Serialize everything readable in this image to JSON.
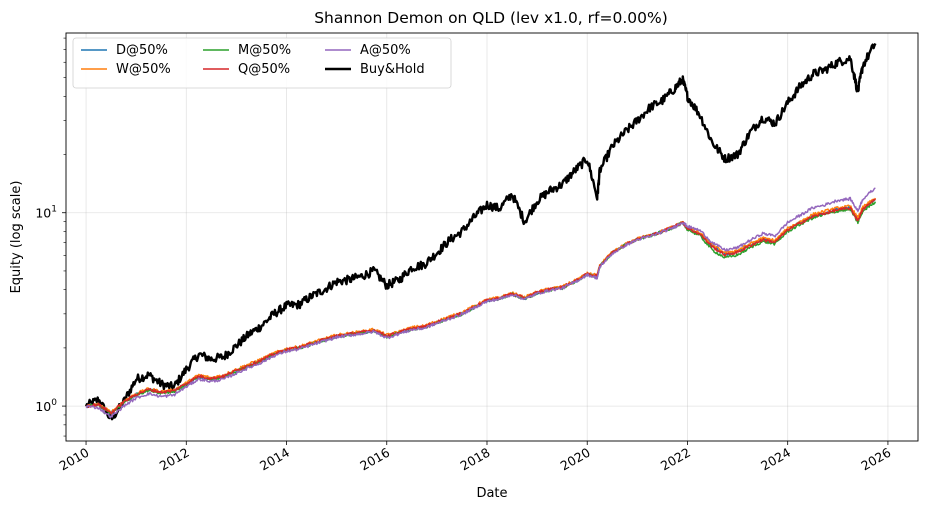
{
  "chart_data": {
    "type": "line",
    "title": "Shannon Demon on QLD (lev x1.0, rf=0.00%)",
    "xlabel": "Date",
    "ylabel": "Equity (log scale)",
    "y_scale": "log",
    "xlim": [
      2009.6,
      2026.6
    ],
    "ylim": [
      0.66,
      85
    ],
    "grid": true,
    "legend_position": "top-left",
    "x_ticks": [
      "2010",
      "2012",
      "2014",
      "2016",
      "2018",
      "2020",
      "2022",
      "2024",
      "2026"
    ],
    "y_ticks": [
      {
        "value": 1,
        "label": "10^0"
      },
      {
        "value": 10,
        "label": "10^1"
      }
    ],
    "x": [
      2010.0,
      2010.25,
      2010.5,
      2010.75,
      2011.0,
      2011.25,
      2011.5,
      2011.75,
      2012.0,
      2012.25,
      2012.5,
      2012.75,
      2013.0,
      2013.25,
      2013.5,
      2013.75,
      2014.0,
      2014.25,
      2014.5,
      2014.75,
      2015.0,
      2015.25,
      2015.5,
      2015.75,
      2016.0,
      2016.25,
      2016.5,
      2016.75,
      2017.0,
      2017.25,
      2017.5,
      2017.75,
      2018.0,
      2018.25,
      2018.5,
      2018.75,
      2019.0,
      2019.25,
      2019.5,
      2019.75,
      2020.0,
      2020.2,
      2020.25,
      2020.5,
      2020.75,
      2021.0,
      2021.25,
      2021.5,
      2021.75,
      2021.9,
      2022.0,
      2022.25,
      2022.5,
      2022.75,
      2023.0,
      2023.25,
      2023.5,
      2023.75,
      2024.0,
      2024.25,
      2024.5,
      2024.75,
      2025.0,
      2025.25,
      2025.4,
      2025.5,
      2025.75
    ],
    "series": [
      {
        "name": "D@50%",
        "color": "#1f77b4",
        "width": 1.5,
        "values": [
          1.0,
          1.02,
          0.92,
          1.05,
          1.15,
          1.22,
          1.18,
          1.2,
          1.3,
          1.42,
          1.38,
          1.42,
          1.52,
          1.62,
          1.72,
          1.85,
          1.95,
          2.0,
          2.1,
          2.2,
          2.3,
          2.35,
          2.4,
          2.45,
          2.3,
          2.4,
          2.5,
          2.55,
          2.7,
          2.85,
          3.0,
          3.25,
          3.5,
          3.6,
          3.8,
          3.6,
          3.85,
          4.0,
          4.1,
          4.4,
          4.8,
          4.7,
          5.3,
          6.2,
          6.8,
          7.3,
          7.6,
          8.0,
          8.5,
          8.9,
          8.3,
          7.8,
          6.7,
          6.1,
          6.3,
          6.8,
          7.3,
          7.1,
          8.2,
          8.9,
          9.6,
          10.0,
          10.4,
          10.6,
          9.2,
          10.5,
          11.7
        ]
      },
      {
        "name": "W@50%",
        "color": "#ff7f0e",
        "width": 1.5,
        "values": [
          1.0,
          1.02,
          0.93,
          1.06,
          1.16,
          1.23,
          1.19,
          1.21,
          1.32,
          1.45,
          1.4,
          1.45,
          1.55,
          1.65,
          1.75,
          1.88,
          1.98,
          2.03,
          2.13,
          2.23,
          2.33,
          2.38,
          2.43,
          2.5,
          2.33,
          2.43,
          2.55,
          2.6,
          2.75,
          2.9,
          3.05,
          3.3,
          3.55,
          3.65,
          3.85,
          3.65,
          3.9,
          4.05,
          4.15,
          4.45,
          4.85,
          4.75,
          5.35,
          6.25,
          6.85,
          7.35,
          7.65,
          8.05,
          8.55,
          8.95,
          8.35,
          7.85,
          6.8,
          6.2,
          6.4,
          6.9,
          7.4,
          7.2,
          8.3,
          9.0,
          9.8,
          10.2,
          10.6,
          10.8,
          9.4,
          10.7,
          11.9
        ]
      },
      {
        "name": "M@50%",
        "color": "#2ca02c",
        "width": 1.5,
        "values": [
          1.0,
          1.01,
          0.91,
          1.04,
          1.14,
          1.21,
          1.17,
          1.19,
          1.29,
          1.41,
          1.37,
          1.41,
          1.51,
          1.61,
          1.71,
          1.84,
          1.94,
          1.99,
          2.09,
          2.19,
          2.29,
          2.34,
          2.39,
          2.44,
          2.28,
          2.39,
          2.49,
          2.54,
          2.69,
          2.84,
          2.99,
          3.24,
          3.49,
          3.59,
          3.79,
          3.58,
          3.83,
          3.98,
          4.08,
          4.38,
          4.78,
          4.65,
          5.28,
          6.18,
          6.78,
          7.28,
          7.58,
          7.98,
          8.45,
          8.85,
          8.2,
          7.6,
          6.4,
          5.85,
          6.05,
          6.6,
          7.1,
          6.9,
          8.0,
          8.7,
          9.4,
          9.8,
          10.2,
          10.4,
          8.9,
          10.2,
          11.4
        ]
      },
      {
        "name": "Q@50%",
        "color": "#d62728",
        "width": 1.5,
        "values": [
          1.0,
          1.02,
          0.92,
          1.05,
          1.15,
          1.22,
          1.18,
          1.2,
          1.31,
          1.43,
          1.39,
          1.43,
          1.53,
          1.63,
          1.73,
          1.86,
          1.96,
          2.01,
          2.11,
          2.21,
          2.31,
          2.36,
          2.41,
          2.47,
          2.31,
          2.41,
          2.52,
          2.57,
          2.72,
          2.87,
          3.02,
          3.27,
          3.52,
          3.62,
          3.82,
          3.62,
          3.87,
          4.02,
          4.12,
          4.42,
          4.82,
          4.72,
          5.32,
          6.22,
          6.82,
          7.32,
          7.62,
          8.02,
          8.52,
          8.92,
          8.32,
          7.75,
          6.65,
          6.05,
          6.25,
          6.75,
          7.25,
          7.05,
          8.15,
          8.85,
          9.55,
          9.95,
          10.35,
          10.55,
          9.1,
          10.4,
          11.8
        ]
      },
      {
        "name": "A@50%",
        "color": "#9467bd",
        "width": 1.5,
        "values": [
          1.0,
          0.98,
          0.88,
          1.0,
          1.1,
          1.16,
          1.12,
          1.14,
          1.26,
          1.38,
          1.34,
          1.38,
          1.48,
          1.58,
          1.68,
          1.82,
          1.92,
          1.97,
          2.07,
          2.17,
          2.27,
          2.32,
          2.37,
          2.43,
          2.25,
          2.37,
          2.48,
          2.53,
          2.68,
          2.83,
          2.98,
          3.23,
          3.48,
          3.58,
          3.78,
          3.57,
          3.82,
          3.97,
          4.07,
          4.37,
          4.77,
          4.6,
          5.25,
          6.15,
          6.75,
          7.25,
          7.55,
          7.95,
          8.45,
          8.95,
          8.5,
          8.1,
          7.0,
          6.4,
          6.6,
          7.2,
          7.8,
          7.6,
          8.9,
          9.7,
          10.6,
          11.0,
          11.6,
          11.8,
          10.2,
          11.8,
          13.4
        ]
      },
      {
        "name": "Buy&Hold",
        "color": "#000000",
        "width": 2.4,
        "values": [
          1.0,
          1.08,
          0.85,
          1.05,
          1.38,
          1.45,
          1.3,
          1.25,
          1.55,
          1.85,
          1.75,
          1.8,
          2.05,
          2.35,
          2.6,
          3.0,
          3.3,
          3.35,
          3.7,
          4.0,
          4.4,
          4.5,
          4.7,
          5.0,
          4.2,
          4.5,
          5.2,
          5.4,
          6.2,
          7.2,
          8.0,
          9.5,
          11.0,
          10.5,
          12.5,
          9.0,
          11.5,
          13.0,
          14.0,
          16.5,
          19.0,
          12.0,
          16.5,
          22.0,
          26.0,
          30.0,
          35.0,
          38.0,
          44.0,
          49.0,
          40.0,
          32.0,
          23.0,
          19.0,
          20.0,
          26.0,
          31.0,
          29.0,
          37.0,
          45.0,
          52.0,
          55.0,
          60.0,
          63.0,
          42.0,
          58.0,
          75.0
        ]
      }
    ],
    "legend": [
      "D@50%",
      "W@50%",
      "M@50%",
      "Q@50%",
      "A@50%",
      "Buy&Hold"
    ]
  }
}
